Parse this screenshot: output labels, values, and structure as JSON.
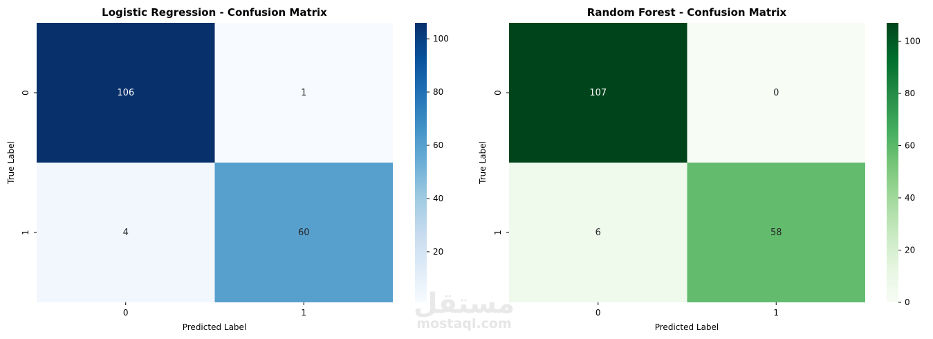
{
  "chart_data": [
    {
      "type": "heatmap",
      "title": "Logistic Regression - Confusion Matrix",
      "xlabel": "Predicted Label",
      "ylabel": "True Label",
      "x_categories": [
        "0",
        "1"
      ],
      "y_categories": [
        "0",
        "1"
      ],
      "values": [
        [
          106,
          1
        ],
        [
          4,
          60
        ]
      ],
      "colormap": "Blues",
      "color_low": "#f7fbff",
      "color_high": "#08306b",
      "colorbar_range": [
        1,
        106
      ],
      "colorbar_ticks": [
        20,
        40,
        60,
        80,
        100
      ]
    },
    {
      "type": "heatmap",
      "title": "Random Forest - Confusion Matrix",
      "xlabel": "Predicted Label",
      "ylabel": "True Label",
      "x_categories": [
        "0",
        "1"
      ],
      "y_categories": [
        "0",
        "1"
      ],
      "values": [
        [
          107,
          0
        ],
        [
          6,
          58
        ]
      ],
      "colormap": "Greens",
      "color_low": "#f7fcf5",
      "color_high": "#00441b",
      "colorbar_range": [
        0,
        107
      ],
      "colorbar_ticks": [
        0,
        20,
        40,
        60,
        80,
        100
      ]
    }
  ],
  "watermark": {
    "arabic": "مستقل",
    "latin": "mostaql.com"
  }
}
